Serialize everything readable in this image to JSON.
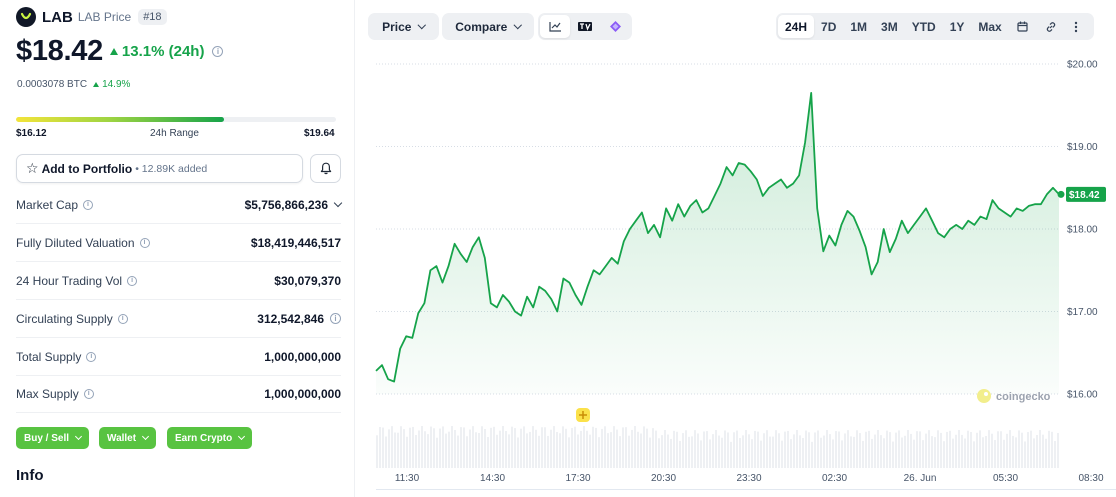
{
  "coin": {
    "symbol": "LAB",
    "name": "LAB Price",
    "rank": "#18",
    "price": "$18.42",
    "change_24h": "13.1% (24h)",
    "btc_price": "0.0003078 BTC",
    "btc_change": "14.9%"
  },
  "range_24h": {
    "low": "$16.12",
    "label": "24h Range",
    "high": "$19.64",
    "position_fraction": 0.65
  },
  "portfolio": {
    "button_label": "Add to Portfolio",
    "added_text": "• 12.89K added"
  },
  "stats": [
    {
      "label": "Market Cap",
      "value": "$5,756,866,236"
    },
    {
      "label": "Fully Diluted Valuation",
      "value": "$18,419,446,517"
    },
    {
      "label": "24 Hour Trading Vol",
      "value": "$30,079,370"
    },
    {
      "label": "Circulating Supply",
      "value": "312,542,846"
    },
    {
      "label": "Total Supply",
      "value": "1,000,000,000"
    },
    {
      "label": "Max Supply",
      "value": "1,000,000,000"
    }
  ],
  "actions": {
    "buy_sell": "Buy / Sell",
    "wallet": "Wallet",
    "earn": "Earn Crypto"
  },
  "info_title": "Info",
  "toolbar": {
    "price_tab": "Price",
    "compare_tab": "Compare",
    "ranges": [
      "24H",
      "7D",
      "1M",
      "3M",
      "YTD",
      "1Y",
      "Max"
    ],
    "active_range": "24H"
  },
  "colors": {
    "line": "#16a34a",
    "accent_button": "#58c341",
    "positive": "#16a34a"
  },
  "chart_data": {
    "type": "area",
    "ylim": [
      16,
      20
    ],
    "yticks": [
      "$20.00",
      "$19.00",
      "$18.00",
      "$17.00",
      "$16.00"
    ],
    "xticks": [
      "11:30",
      "14:30",
      "17:30",
      "20:30",
      "23:30",
      "02:30",
      "26. Jun",
      "05:30",
      "08:30"
    ],
    "current_label": "$18.42",
    "watermark": "coingecko",
    "series": [
      {
        "values": [
          16.28,
          16.35,
          16.18,
          16.15,
          16.55,
          16.7,
          16.68,
          16.98,
          17.1,
          17.5,
          17.55,
          17.35,
          17.55,
          17.82,
          17.7,
          17.6,
          17.78,
          17.9,
          17.65,
          17.1,
          17.05,
          17.2,
          17.12,
          17.0,
          16.95,
          17.18,
          17.05,
          17.3,
          17.25,
          17.15,
          17.0,
          17.4,
          17.35,
          17.2,
          17.08,
          17.3,
          17.5,
          17.45,
          17.55,
          17.65,
          17.58,
          17.85,
          18.0,
          18.1,
          18.2,
          17.95,
          18.05,
          17.9,
          18.25,
          18.1,
          18.3,
          18.15,
          18.28,
          18.35,
          18.2,
          18.25,
          18.4,
          18.55,
          18.75,
          18.65,
          18.8,
          18.78,
          18.7,
          18.6,
          18.4,
          18.5,
          18.55,
          18.6,
          18.5,
          18.55,
          18.65,
          19.05,
          19.65,
          18.25,
          17.73,
          17.92,
          17.8,
          18.05,
          18.22,
          18.15,
          17.98,
          17.78,
          17.45,
          17.6,
          18.0,
          17.72,
          17.88,
          18.1,
          17.95,
          18.05,
          18.15,
          18.25,
          18.1,
          17.95,
          17.9,
          18.0,
          18.05,
          18.0,
          18.1,
          18.05,
          18.15,
          18.12,
          18.35,
          18.25,
          18.2,
          18.15,
          18.25,
          18.22,
          18.28,
          18.3,
          18.3,
          18.42,
          18.5,
          18.42
        ]
      }
    ]
  }
}
